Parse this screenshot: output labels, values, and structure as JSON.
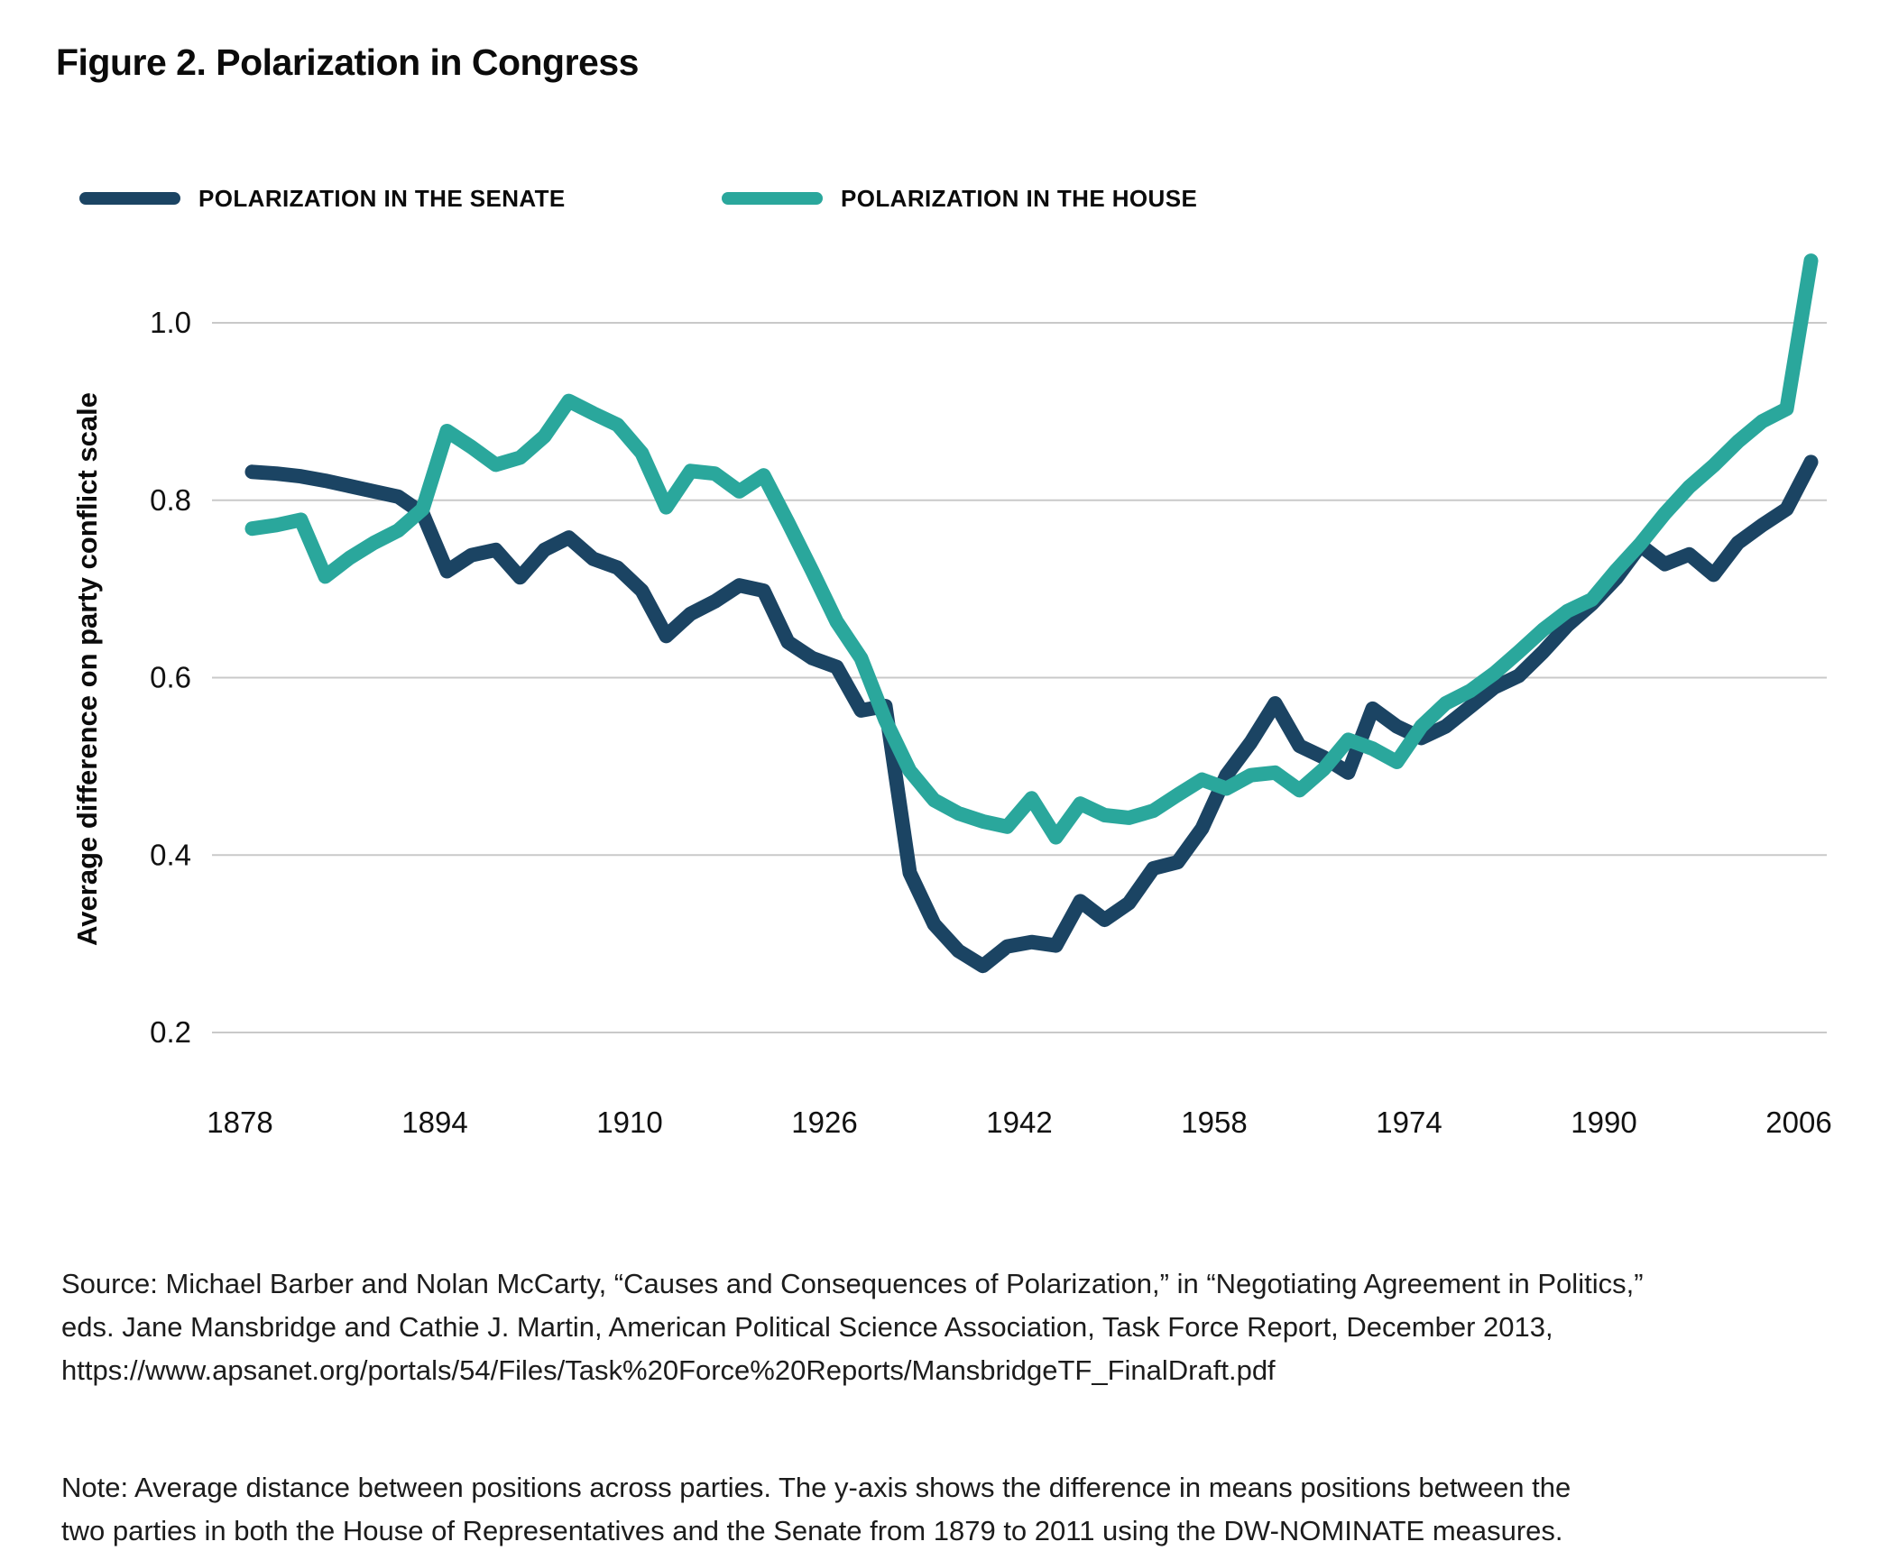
{
  "figure": {
    "title": "Figure 2. Polarization in Congress"
  },
  "legend": [
    {
      "label": "POLARIZATION IN THE SENATE",
      "color": "#1b4463",
      "series": "senate"
    },
    {
      "label": "POLARIZATION IN THE HOUSE",
      "color": "#2aa79c",
      "series": "house"
    }
  ],
  "chart_data": {
    "type": "line",
    "title": "Figure 2. Polarization in Congress",
    "xlabel": "",
    "ylabel": "Average difference on party conflict scale",
    "grid": true,
    "legend_position": "top",
    "ylim": [
      0.13,
      1.12
    ],
    "y_ticks": [
      {
        "value": 1.0,
        "label": "1.0"
      },
      {
        "value": 0.8,
        "label": "0.8"
      },
      {
        "value": 0.6,
        "label": "0.6"
      },
      {
        "value": 0.4,
        "label": "0.4"
      },
      {
        "value": 0.2,
        "label": "0.2"
      }
    ],
    "x_ticks": [
      "1878",
      "1894",
      "1910",
      "1926",
      "1942",
      "1958",
      "1974",
      "1990",
      "2006"
    ],
    "x": [
      1879,
      1881,
      1883,
      1885,
      1887,
      1889,
      1891,
      1893,
      1895,
      1897,
      1899,
      1901,
      1903,
      1905,
      1907,
      1909,
      1911,
      1913,
      1915,
      1917,
      1919,
      1921,
      1923,
      1925,
      1927,
      1929,
      1931,
      1933,
      1935,
      1937,
      1939,
      1941,
      1943,
      1945,
      1947,
      1949,
      1951,
      1953,
      1955,
      1957,
      1959,
      1961,
      1963,
      1965,
      1967,
      1969,
      1971,
      1973,
      1975,
      1977,
      1979,
      1981,
      1983,
      1985,
      1987,
      1989,
      1991,
      1993,
      1995,
      1997,
      1999,
      2001,
      2003,
      2005,
      2007
    ],
    "series": [
      {
        "name": "Polarization in the Senate",
        "color": "#1b4463",
        "values": [
          0.832,
          0.83,
          0.827,
          0.822,
          0.816,
          0.81,
          0.804,
          0.785,
          0.72,
          0.738,
          0.744,
          0.713,
          0.744,
          0.758,
          0.734,
          0.724,
          0.698,
          0.647,
          0.672,
          0.686,
          0.704,
          0.698,
          0.64,
          0.622,
          0.612,
          0.563,
          0.568,
          0.38,
          0.322,
          0.292,
          0.275,
          0.297,
          0.302,
          0.298,
          0.348,
          0.327,
          0.346,
          0.385,
          0.392,
          0.43,
          0.49,
          0.527,
          0.571,
          0.523,
          0.51,
          0.493,
          0.565,
          0.545,
          0.532,
          0.545,
          0.567,
          0.589,
          0.602,
          0.629,
          0.659,
          0.683,
          0.712,
          0.749,
          0.728,
          0.739,
          0.716,
          0.752,
          0.772,
          0.79,
          0.843
        ]
      },
      {
        "name": "Polarization in the House",
        "color": "#2aa79c",
        "values": [
          0.768,
          0.772,
          0.778,
          0.714,
          0.735,
          0.752,
          0.766,
          0.79,
          0.878,
          0.86,
          0.84,
          0.848,
          0.872,
          0.912,
          0.898,
          0.885,
          0.853,
          0.792,
          0.833,
          0.83,
          0.81,
          0.828,
          0.775,
          0.72,
          0.663,
          0.622,
          0.552,
          0.495,
          0.462,
          0.447,
          0.438,
          0.432,
          0.464,
          0.42,
          0.458,
          0.445,
          0.442,
          0.45,
          0.468,
          0.485,
          0.475,
          0.49,
          0.493,
          0.473,
          0.497,
          0.53,
          0.52,
          0.505,
          0.545,
          0.571,
          0.585,
          0.605,
          0.629,
          0.654,
          0.675,
          0.688,
          0.721,
          0.751,
          0.785,
          0.815,
          0.839,
          0.866,
          0.889,
          0.903,
          1.07
        ]
      }
    ]
  },
  "source": {
    "lines": [
      "Source: Michael Barber and Nolan McCarty, “Causes and Consequences of Polarization,” in “Negotiating Agreement in Politics,”",
      "eds. Jane Mansbridge and Cathie J. Martin, American Political Science Association, Task Force Report, December 2013,",
      "https://www.apsanet.org/portals/54/Files/Task%20Force%20Reports/MansbridgeTF_FinalDraft.pdf"
    ]
  },
  "note": {
    "lines": [
      "Note: Average distance between positions across parties. The y-axis shows the difference in means positions between the",
      "two parties in both the House of Representatives and the Senate from 1879 to 2011 using the DW-NOMINATE measures."
    ]
  }
}
